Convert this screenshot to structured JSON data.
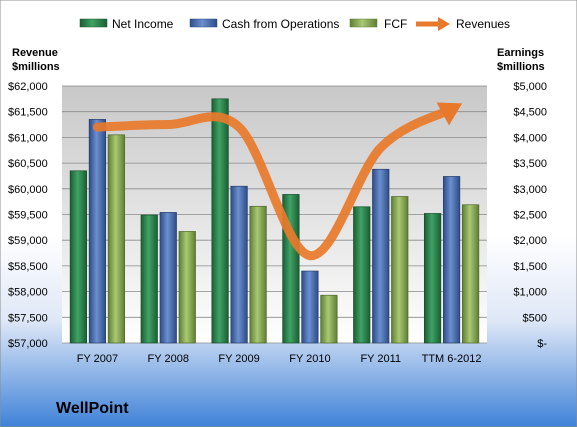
{
  "chart_data": {
    "type": "bar",
    "company": "WellPoint",
    "categories": [
      "FY 2007",
      "FY 2008",
      "FY 2009",
      "FY 2010",
      "FY 2011",
      "TTM 6-2012"
    ],
    "left_axis": {
      "title_line1": "Revenue",
      "title_line2": "$millions",
      "range": [
        57000,
        62000
      ],
      "ticks": [
        "$57,000",
        "$57,500",
        "$58,000",
        "$58,500",
        "$59,000",
        "$59,500",
        "$60,000",
        "$60,500",
        "$61,000",
        "$61,500",
        "$62,000"
      ]
    },
    "right_axis": {
      "title_line1": "Earnings",
      "title_line2": "$millions",
      "range": [
        0,
        5000
      ],
      "ticks": [
        "$-",
        "$500",
        "$1,000",
        "$1,500",
        "$2,000",
        "$2,500",
        "$3,000",
        "$3,500",
        "$4,000",
        "$4,500",
        "$5,000"
      ]
    },
    "series": [
      {
        "name": "Net Income",
        "axis": "right",
        "kind": "bar",
        "color": "#2e8b50",
        "values": [
          3350,
          2490,
          4750,
          2890,
          2650,
          2520
        ]
      },
      {
        "name": "Cash from Operations",
        "axis": "right",
        "kind": "bar",
        "color": "#4a6fb5",
        "values": [
          4350,
          2540,
          3050,
          1400,
          3380,
          3240
        ]
      },
      {
        "name": "FCF",
        "axis": "right",
        "kind": "bar",
        "color": "#8fb35a",
        "values": [
          4050,
          2170,
          2660,
          930,
          2850,
          2690
        ]
      },
      {
        "name": "Revenues",
        "axis": "left",
        "kind": "line",
        "color": "#e8792a",
        "values": [
          61200,
          61250,
          61200,
          58700,
          60800,
          61550
        ]
      }
    ],
    "grid": true,
    "legend": "top"
  }
}
